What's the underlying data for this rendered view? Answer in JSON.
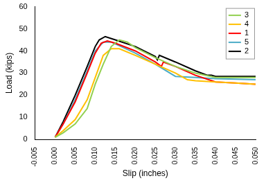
{
  "chart_data": {
    "type": "line",
    "x_label": "Slip (inches)",
    "y_label": "Load (kips)",
    "xlim": [
      -0.005,
      0.05
    ],
    "xticks": [
      {
        "value": -0.005,
        "label": "-0.005"
      },
      {
        "value": 0,
        "label": "0.000"
      },
      {
        "value": 0.005,
        "label": "0.005"
      },
      {
        "value": 0.01,
        "label": "0.010"
      },
      {
        "value": 0.015,
        "label": "0.015"
      },
      {
        "value": 0.02,
        "label": "0.020"
      },
      {
        "value": 0.025,
        "label": "0.025"
      },
      {
        "value": 0.03,
        "label": "0.030"
      },
      {
        "value": 0.035,
        "label": "0.035"
      },
      {
        "value": 0.04,
        "label": "0.040"
      },
      {
        "value": 0.045,
        "label": "0.045"
      },
      {
        "value": 0.05,
        "label": "0.050"
      }
    ],
    "ylim": [
      0,
      60
    ],
    "yticks": [
      0,
      10,
      20,
      30,
      40,
      50,
      60
    ],
    "grid": false,
    "legend": "upper right",
    "series": [
      {
        "name": "3",
        "color": "#92d050",
        "x": [
          0,
          0.002,
          0.005,
          0.008,
          0.01,
          0.012,
          0.014,
          0.016,
          0.018,
          0.02,
          0.025,
          0.03,
          0.035,
          0.04,
          0.05
        ],
        "values": [
          1,
          3,
          7,
          14,
          25,
          34,
          42,
          45,
          44,
          41.5,
          37,
          33,
          30,
          28,
          28
        ]
      },
      {
        "name": "4",
        "color": "#ffc000",
        "x": [
          0,
          0.002,
          0.005,
          0.008,
          0.01,
          0.012,
          0.014,
          0.016,
          0.02,
          0.025,
          0.03,
          0.033,
          0.035,
          0.04,
          0.045,
          0.05
        ],
        "values": [
          1,
          4,
          9,
          18,
          28,
          38,
          41,
          41,
          38,
          34,
          30,
          27,
          26.5,
          26,
          25.5,
          25
        ]
      },
      {
        "name": "1",
        "color": "#ff0000",
        "x": [
          0,
          0.002,
          0.005,
          0.008,
          0.01,
          0.0115,
          0.013,
          0.015,
          0.02,
          0.025,
          0.0265,
          0.027,
          0.03,
          0.035,
          0.04,
          0.045,
          0.05
        ],
        "values": [
          1,
          7,
          17,
          30,
          39,
          43.5,
          44.5,
          43.5,
          40,
          35,
          33,
          35,
          33,
          29,
          26,
          25.5,
          25
        ]
      },
      {
        "name": "5",
        "color": "#4bacc6",
        "x": [
          0,
          0.002,
          0.005,
          0.008,
          0.01,
          0.012,
          0.014,
          0.02,
          0.025,
          0.03,
          0.035,
          0.04,
          0.05
        ],
        "values": [
          1,
          7,
          18,
          31,
          40,
          44,
          44,
          39,
          34,
          28.5,
          28,
          27.5,
          27
        ]
      },
      {
        "name": "2",
        "color": "#000000",
        "x": [
          0,
          0.002,
          0.005,
          0.008,
          0.01,
          0.011,
          0.0125,
          0.015,
          0.02,
          0.025,
          0.0255,
          0.026,
          0.03,
          0.035,
          0.038,
          0.039,
          0.04,
          0.05
        ],
        "values": [
          1,
          8,
          20,
          33,
          42,
          45,
          46.5,
          45,
          42,
          37.5,
          36,
          38,
          35,
          31,
          29,
          29,
          28.5,
          28.5
        ]
      }
    ]
  }
}
